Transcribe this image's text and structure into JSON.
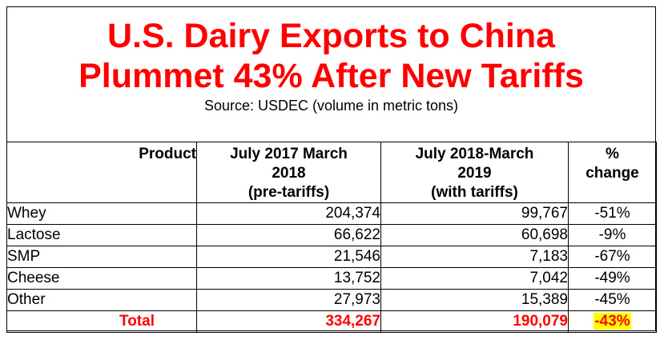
{
  "title": {
    "line1": "U.S. Dairy Exports to China",
    "line2": "Plummet 43% After New Tariffs",
    "title_color": "#ff0000"
  },
  "source": "Source: USDEC (volume in metric tons)",
  "table": {
    "headers": {
      "product": "Product",
      "period1": [
        "July 2017 March",
        "2018",
        "(pre-tariffs)"
      ],
      "period2": [
        "July 2018-March",
        "2019",
        "(with tariffs)"
      ],
      "change": [
        "%",
        "change"
      ]
    },
    "rows": [
      {
        "product": "Whey",
        "period1": "204,374",
        "period2": "99,767",
        "change": "-51%"
      },
      {
        "product": "Lactose",
        "period1": "66,622",
        "period2": "60,698",
        "change": "-9%"
      },
      {
        "product": "SMP",
        "period1": "21,546",
        "period2": "7,183",
        "change": "-67%"
      },
      {
        "product": "Cheese",
        "period1": "13,752",
        "period2": "7,042",
        "change": "-49%"
      },
      {
        "product": "Other",
        "period1": "27,973",
        "period2": "15,389",
        "change": "-45%"
      }
    ],
    "total": {
      "product": "Total",
      "period1": "334,267",
      "period2": "190,079",
      "change": "-43%"
    },
    "total_color": "#ff0000",
    "highlight_color": "#ffff00"
  }
}
